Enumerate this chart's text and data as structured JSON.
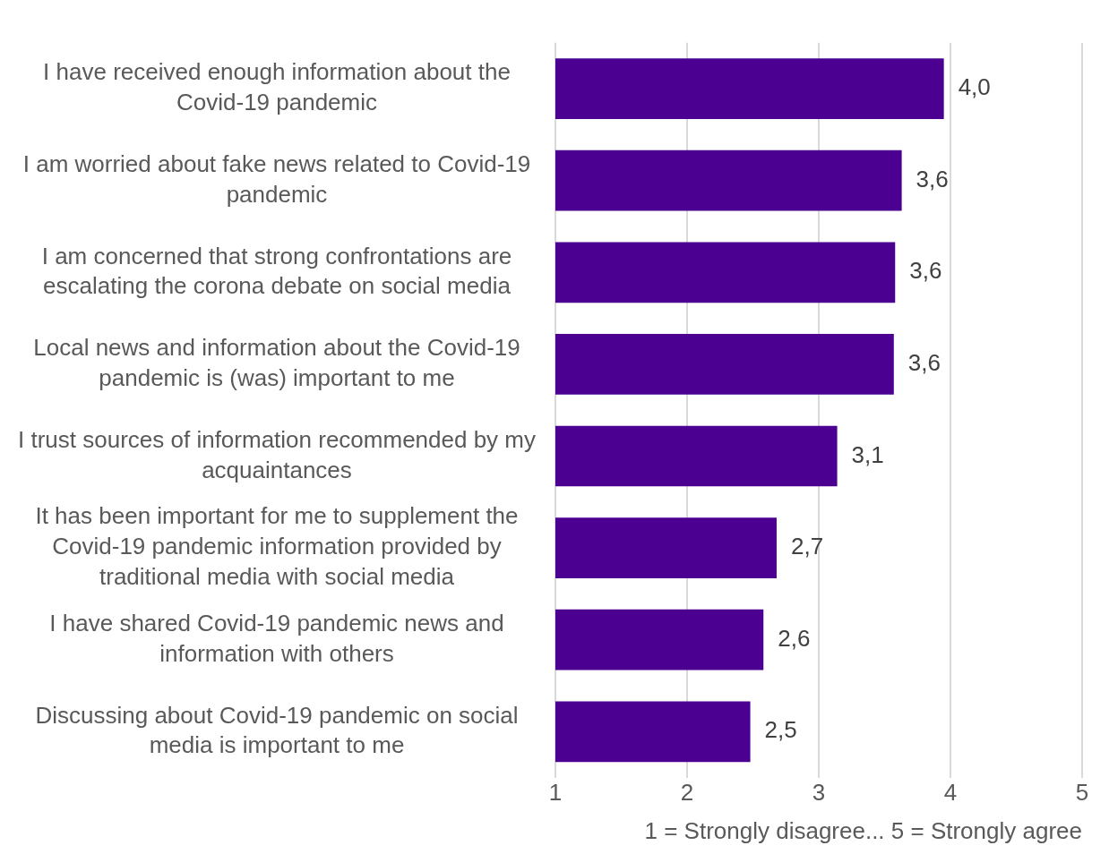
{
  "chart_data": {
    "type": "bar",
    "orientation": "horizontal",
    "xlabel": "1 = Strongly disagree... 5 = Strongly agree",
    "categories": [
      "I have received enough information about the Covid-19 pandemic",
      "I am worried about fake news related to Covid-19 pandemic",
      "I am concerned that strong confrontations are escalating the corona debate on social media",
      "Local news and information about the Covid-19 pandemic is (was) important to me",
      "I trust sources of information recommended by my acquaintances",
      "It has been important for me to supplement the Covid-19 pandemic information provided by traditional media with social media",
      "I have shared Covid-19 pandemic news and information with others",
      "Discussing about Covid-19 pandemic on social media is important to me"
    ],
    "values": [
      3.95,
      3.63,
      3.58,
      3.57,
      3.14,
      2.68,
      2.58,
      2.48
    ],
    "value_labels": [
      "4,0",
      "3,6",
      "3,6",
      "3,6",
      "3,1",
      "2,7",
      "2,6",
      "2,5"
    ],
    "color": "#4b0092",
    "xlim": [
      1,
      5
    ],
    "xticks": [
      1,
      2,
      3,
      4,
      5
    ],
    "grid": "x",
    "legend": false
  }
}
